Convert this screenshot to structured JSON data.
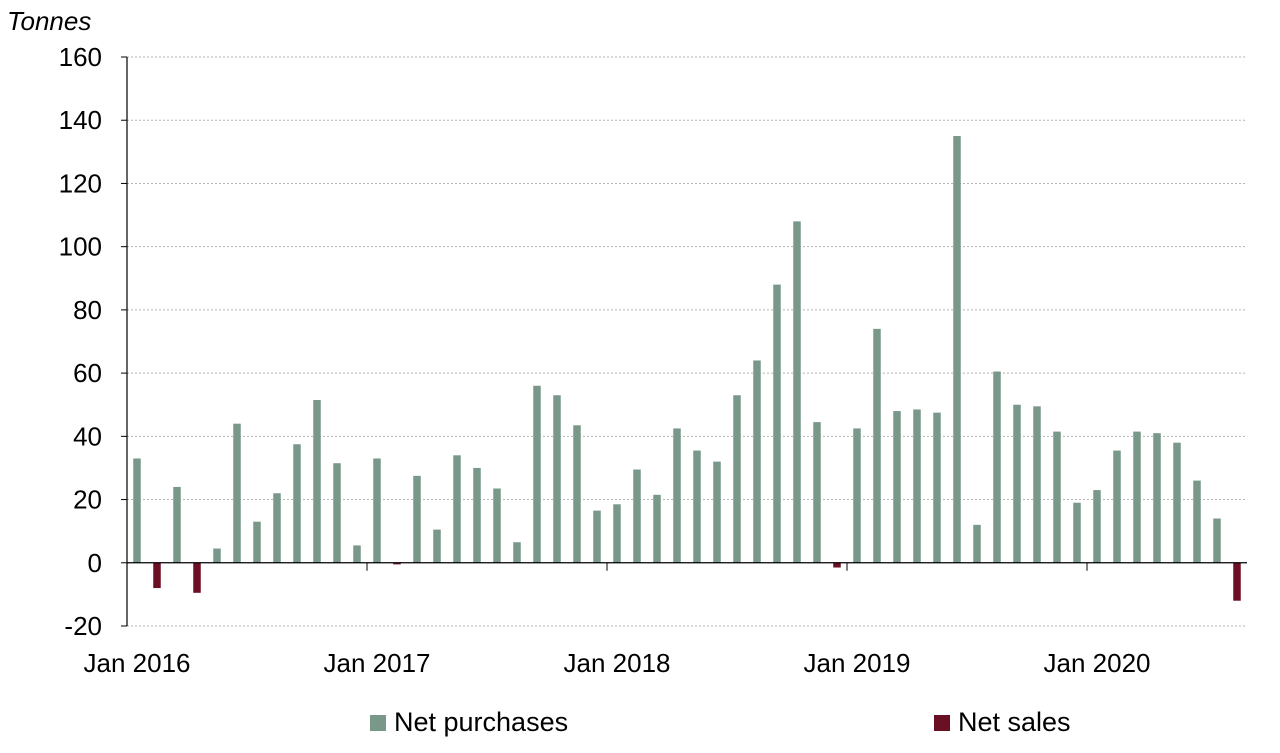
{
  "chart_data": {
    "type": "bar",
    "ylabel": "Tonnes",
    "ylim": [
      -20,
      160
    ],
    "yticks": [
      -20,
      0,
      20,
      40,
      60,
      80,
      100,
      120,
      140,
      160
    ],
    "x_tick_labels": [
      "Jan 2016",
      "Jan 2017",
      "Jan 2018",
      "Jan 2019",
      "Jan 2020"
    ],
    "x_tick_month_index": [
      0,
      12,
      24,
      36,
      48
    ],
    "start_month": "Jan 2016",
    "colors": {
      "purchases": "#7a988a",
      "sales": "#6b0f24"
    },
    "series": [
      {
        "name": "Net purchases",
        "color": "#7a988a"
      },
      {
        "name": "Net sales",
        "color": "#6b0f24"
      }
    ],
    "values": [
      33,
      -8,
      24,
      -9.5,
      4.5,
      44,
      13,
      22,
      37.5,
      51.5,
      31.5,
      5.5,
      33,
      -0.5,
      27.5,
      10.5,
      34,
      30,
      23.5,
      6.5,
      56,
      53,
      43.5,
      16.5,
      18.5,
      29.5,
      21.5,
      42.5,
      35.5,
      32,
      53,
      64,
      88,
      108,
      44.5,
      -1.5,
      42.5,
      74,
      48,
      48.5,
      47.5,
      135,
      12,
      60.5,
      50,
      49.5,
      41.5,
      19,
      23,
      35.5,
      41.5,
      41,
      38,
      26,
      14,
      -12
    ]
  }
}
